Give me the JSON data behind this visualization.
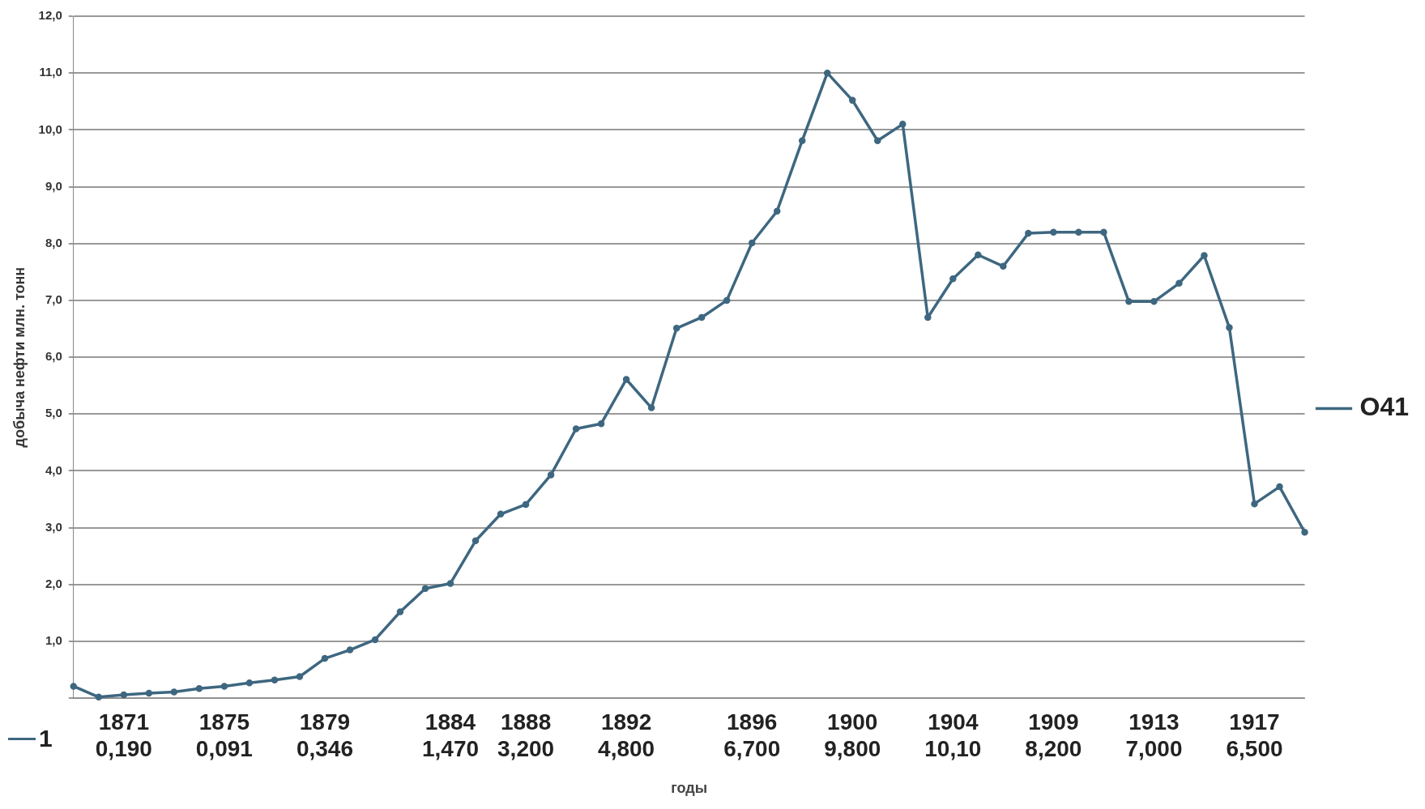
{
  "chart_data": {
    "type": "line",
    "ylabel": "добыча нефти млн. тонн",
    "xlabel": "годы",
    "categories": [
      null,
      null,
      "1871\n0,190",
      null,
      null,
      null,
      "1875\n0,091",
      null,
      null,
      null,
      "1879\n0,346",
      null,
      null,
      null,
      null,
      "1884\n1,470",
      null,
      null,
      "1888\n3,200",
      null,
      null,
      null,
      "1892\n4,800",
      null,
      null,
      null,
      null,
      "1896\n6,700",
      null,
      null,
      null,
      "1900\n9,800",
      null,
      null,
      null,
      "1904\n10,10",
      null,
      null,
      null,
      "1909\n8,200",
      null,
      null,
      null,
      "1913\n7,000",
      null,
      null,
      null,
      "1917\n6,500",
      null,
      null
    ],
    "series": [
      {
        "name": "O41",
        "color": "#3e6780",
        "values": [
          0.21,
          0.02,
          0.06,
          0.09,
          0.11,
          0.17,
          0.21,
          0.27,
          0.32,
          0.38,
          0.7,
          0.85,
          1.03,
          1.52,
          1.93,
          2.02,
          2.77,
          3.24,
          3.41,
          3.93,
          4.74,
          4.83,
          5.61,
          5.11,
          6.51,
          6.7,
          7.0,
          8.01,
          8.57,
          9.81,
          11.0,
          10.52,
          9.81,
          10.1,
          6.7,
          7.38,
          7.8,
          7.6,
          8.18,
          8.2,
          8.2,
          8.2,
          6.98,
          6.98,
          7.3,
          7.79,
          6.52,
          3.42,
          3.72,
          2.92
        ]
      }
    ],
    "ylim": [
      0,
      12
    ],
    "yticks": [
      {
        "value": 0,
        "label": null
      },
      {
        "value": 1,
        "label": "1,0"
      },
      {
        "value": 2,
        "label": "2,0"
      },
      {
        "value": 3,
        "label": "3,0"
      },
      {
        "value": 4,
        "label": "4,0"
      },
      {
        "value": 5,
        "label": "5,0"
      },
      {
        "value": 6,
        "label": "6,0"
      },
      {
        "value": 7,
        "label": "7,0"
      },
      {
        "value": 8,
        "label": "8,0"
      },
      {
        "value": 9,
        "label": "9,0"
      },
      {
        "value": 10,
        "label": "10,0"
      },
      {
        "value": 11,
        "label": "11,0"
      },
      {
        "value": 12,
        "label": "12,0"
      }
    ],
    "grid": "y",
    "legend": "right",
    "marker": "circle",
    "line_style": "solid",
    "annotations": [
      "1"
    ]
  }
}
